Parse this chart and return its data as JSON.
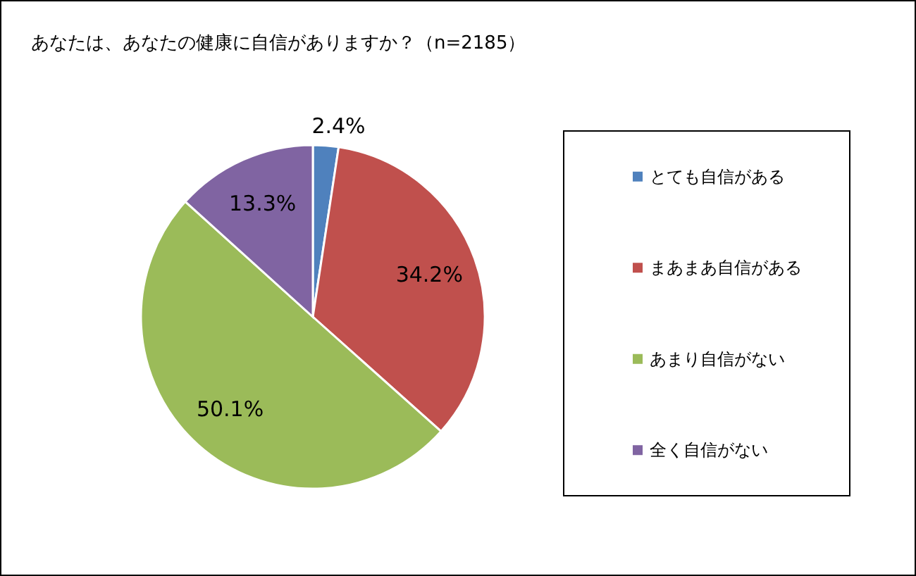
{
  "chart_data": {
    "type": "pie",
    "title": "あなたは、あなたの健康に自信がありますか？（n=2185）",
    "categories": [
      "とても自信がある",
      "まあまあ自信がある",
      "あまり自信がない",
      "全く自信がない"
    ],
    "values": [
      2.4,
      34.2,
      50.1,
      13.3
    ],
    "value_labels": [
      "2.4%",
      "34.2%",
      "50.1%",
      "13.3%"
    ],
    "colors": [
      "#4f81bd",
      "#c0504d",
      "#9bbb59",
      "#8064a2"
    ],
    "legend": "right"
  }
}
